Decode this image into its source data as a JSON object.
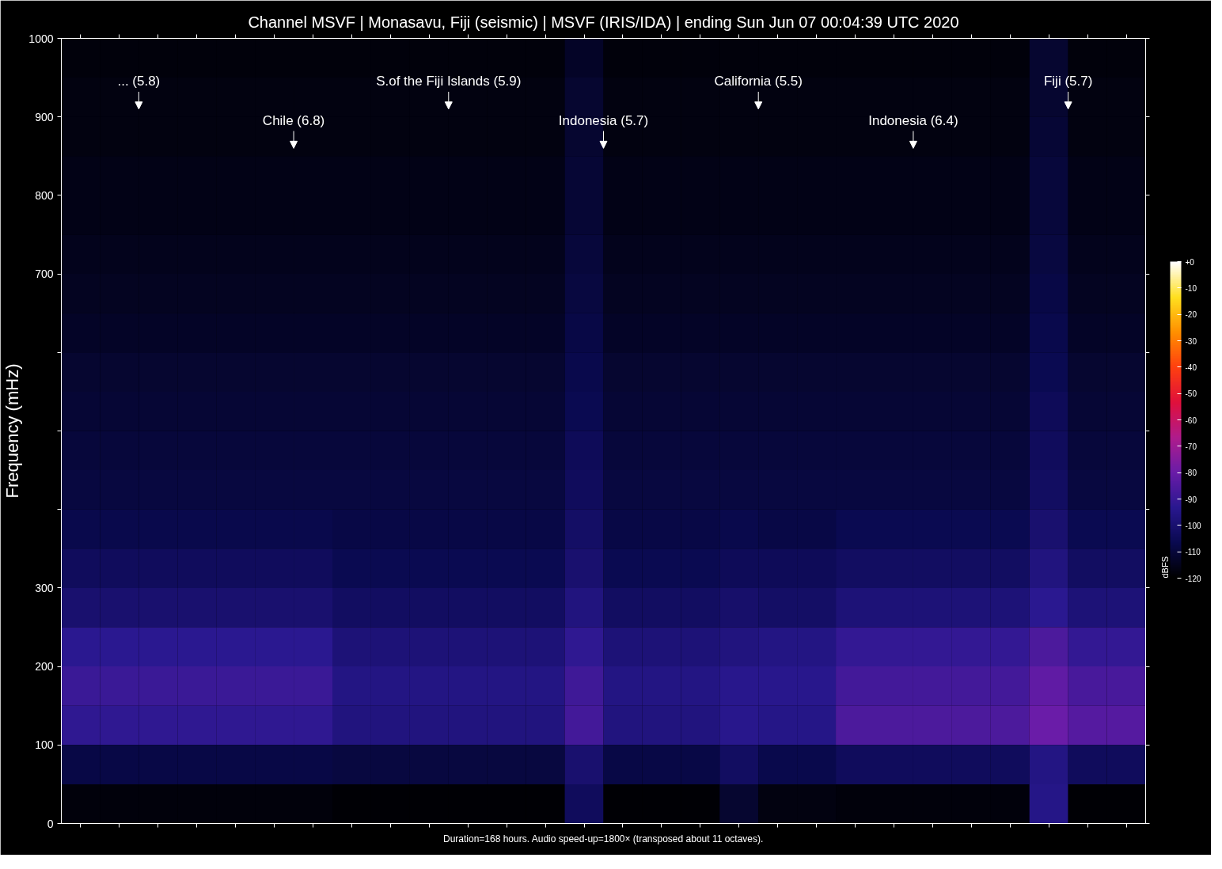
{
  "chart_data": {
    "type": "heatmap",
    "title": "Channel MSVF | Monasavu, Fiji (seismic) | MSVF (IRIS/IDA) | ending Sun Jun 07 00:04:39 UTC 2020",
    "ylabel": "Frequency (mHz)",
    "clabel": "dBFS",
    "categories": [
      null,
      null,
      null,
      null,
      null,
      null,
      null,
      null,
      null,
      null,
      null,
      null,
      null,
      null,
      null,
      null,
      null,
      null,
      null,
      null,
      null,
      null,
      null,
      null,
      null,
      null,
      null,
      null
    ],
    "ylim": [
      0,
      1000
    ],
    "yticks": [
      0,
      100,
      200,
      300,
      {
        "value": 400,
        "label": null
      },
      {
        "value": 500,
        "label": null
      },
      {
        "value": 600,
        "label": null
      },
      700,
      800,
      900,
      1000
    ],
    "tick_labels": "y",
    "clim": [
      -120,
      0
    ],
    "cticks": [
      {
        "value": 0,
        "label": "+0"
      },
      -10,
      -20,
      -30,
      -40,
      -50,
      -60,
      -70,
      -80,
      -90,
      -100,
      -110,
      -120
    ],
    "cells": [
      [
        -118,
        -118,
        -118,
        -118,
        -118,
        -118,
        -118,
        -118,
        -118,
        -118,
        -118,
        -118,
        -118,
        -113,
        -118,
        -118,
        -118,
        -118,
        -118,
        -118,
        -118,
        -118,
        -118,
        -118,
        -118,
        -112,
        -118,
        -118
      ],
      [
        -117,
        -117,
        -117,
        -117,
        -117,
        -117,
        -117,
        -117,
        -117,
        -117,
        -117,
        -117,
        -117,
        -112,
        -117,
        -117,
        -117,
        -117,
        -117,
        -117,
        -117,
        -117,
        -117,
        -117,
        -117,
        -112,
        -117,
        -117
      ],
      [
        -117,
        -117,
        -117,
        -117,
        -117,
        -117,
        -117,
        -117,
        -117,
        -117,
        -117,
        -117,
        -117,
        -112,
        -117,
        -117,
        -117,
        -117,
        -117,
        -117,
        -117,
        -117,
        -117,
        -117,
        -117,
        -111,
        -117,
        -117
      ],
      [
        -116,
        -116,
        -116,
        -116,
        -116,
        -116,
        -116,
        -116,
        -116,
        -116,
        -116,
        -116,
        -116,
        -111,
        -116,
        -116,
        -116,
        -116,
        -116,
        -116,
        -116,
        -116,
        -116,
        -116,
        -116,
        -110,
        -116,
        -116
      ],
      [
        -116,
        -116,
        -116,
        -116,
        -116,
        -116,
        -116,
        -116,
        -116,
        -116,
        -116,
        -116,
        -116,
        -111,
        -116,
        -116,
        -116,
        -116,
        -116,
        -116,
        -116,
        -116,
        -116,
        -116,
        -116,
        -110,
        -116,
        -116
      ],
      [
        -115,
        -115,
        -115,
        -115,
        -115,
        -115,
        -115,
        -115,
        -115,
        -115,
        -115,
        -115,
        -115,
        -110,
        -115,
        -115,
        -115,
        -115,
        -115,
        -115,
        -115,
        -115,
        -115,
        -115,
        -115,
        -109,
        -115,
        -115
      ],
      [
        -114,
        -114,
        -114,
        -114,
        -114,
        -114,
        -114,
        -114,
        -114,
        -114,
        -114,
        -114,
        -114,
        -109,
        -114,
        -114,
        -114,
        -114,
        -114,
        -114,
        -114,
        -114,
        -114,
        -114,
        -114,
        -108,
        -114,
        -114
      ],
      [
        -113,
        -113,
        -113,
        -113,
        -113,
        -113,
        -113,
        -113,
        -113,
        -113,
        -113,
        -113,
        -113,
        -108,
        -113,
        -113,
        -113,
        -113,
        -113,
        -113,
        -113,
        -113,
        -113,
        -113,
        -113,
        -107,
        -113,
        -113
      ],
      [
        -112,
        -112,
        -112,
        -112,
        -112,
        -112,
        -112,
        -112,
        -112,
        -112,
        -112,
        -112,
        -112,
        -107,
        -112,
        -112,
        -112,
        -112,
        -112,
        -112,
        -112,
        -112,
        -112,
        -112,
        -112,
        -106,
        -112,
        -112
      ],
      [
        -111,
        -111,
        -111,
        -111,
        -111,
        -111,
        -111,
        -111,
        -111,
        -111,
        -111,
        -111,
        -111,
        -106,
        -111,
        -111,
        -111,
        -111,
        -111,
        -111,
        -111,
        -111,
        -111,
        -111,
        -111,
        -105,
        -111,
        -111
      ],
      [
        -110,
        -110,
        -110,
        -110,
        -110,
        -110,
        -110,
        -110,
        -110,
        -110,
        -110,
        -110,
        -110,
        -105,
        -110,
        -110,
        -110,
        -110,
        -110,
        -110,
        -110,
        -110,
        -110,
        -110,
        -110,
        -104,
        -110,
        -110
      ],
      [
        -109,
        -109,
        -109,
        -109,
        -109,
        -109,
        -109,
        -109,
        -109,
        -109,
        -109,
        -109,
        -109,
        -104,
        -109,
        -109,
        -109,
        -109,
        -109,
        -109,
        -109,
        -109,
        -109,
        -109,
        -109,
        -103,
        -109,
        -109
      ],
      [
        -107,
        -107,
        -107,
        -107,
        -107,
        -107,
        -107,
        -108,
        -108,
        -108,
        -108,
        -108,
        -108,
        -102,
        -108,
        -108,
        -108,
        -107,
        -108,
        -108,
        -106,
        -106,
        -106,
        -106,
        -106,
        -100,
        -106,
        -106
      ],
      [
        -104,
        -104,
        -104,
        -104,
        -104,
        -104,
        -104,
        -106,
        -106,
        -106,
        -106,
        -106,
        -106,
        -100,
        -106,
        -106,
        -106,
        -105,
        -105,
        -105,
        -103,
        -103,
        -103,
        -103,
        -103,
        -97,
        -103,
        -103
      ],
      [
        -100,
        -100,
        -100,
        -100,
        -100,
        -100,
        -100,
        -103,
        -103,
        -103,
        -103,
        -103,
        -103,
        -97,
        -103,
        -103,
        -103,
        -101,
        -102,
        -102,
        -98,
        -98,
        -98,
        -98,
        -98,
        -93,
        -98,
        -98
      ],
      [
        -93,
        -93,
        -93,
        -93,
        -93,
        -93,
        -93,
        -98,
        -98,
        -98,
        -98,
        -98,
        -98,
        -92,
        -98,
        -98,
        -98,
        -97,
        -96,
        -96,
        -91,
        -91,
        -91,
        -91,
        -91,
        -86,
        -91,
        -91
      ],
      [
        -90,
        -90,
        -90,
        -90,
        -90,
        -90,
        -90,
        -96,
        -96,
        -96,
        -96,
        -96,
        -96,
        -89,
        -96,
        -96,
        -96,
        -94,
        -94,
        -94,
        -88,
        -88,
        -88,
        -88,
        -88,
        -82,
        -87,
        -87
      ],
      [
        -92,
        -92,
        -92,
        -92,
        -92,
        -92,
        -92,
        -97,
        -97,
        -97,
        -97,
        -97,
        -97,
        -88,
        -97,
        -97,
        -97,
        -94,
        -95,
        -95,
        -86,
        -86,
        -86,
        -86,
        -86,
        -80,
        -84,
        -84
      ],
      [
        -108,
        -108,
        -108,
        -108,
        -108,
        -108,
        -108,
        -109,
        -109,
        -109,
        -109,
        -109,
        -109,
        -100,
        -108,
        -108,
        -108,
        -103,
        -107,
        -107,
        -104,
        -104,
        -104,
        -104,
        -104,
        -96,
        -104,
        -104
      ],
      [
        -118,
        -118,
        -118,
        -118,
        -118,
        -118,
        -118,
        -119,
        -119,
        -119,
        -119,
        -119,
        -119,
        -104,
        -119,
        -119,
        -119,
        -112,
        -117,
        -117,
        -118,
        -118,
        -118,
        -118,
        -118,
        -95,
        -119,
        -119
      ]
    ],
    "annotations": [
      "... (5.8)",
      "Chile (6.8)",
      "S.of the Fiji Islands (5.9)",
      "Indonesia (5.7)",
      "California (5.5)",
      "Indonesia (6.4)",
      "Fiji (5.7)",
      "Duration=168 hours. Audio speed-up=1800× (transposed about 11 octaves)."
    ]
  }
}
